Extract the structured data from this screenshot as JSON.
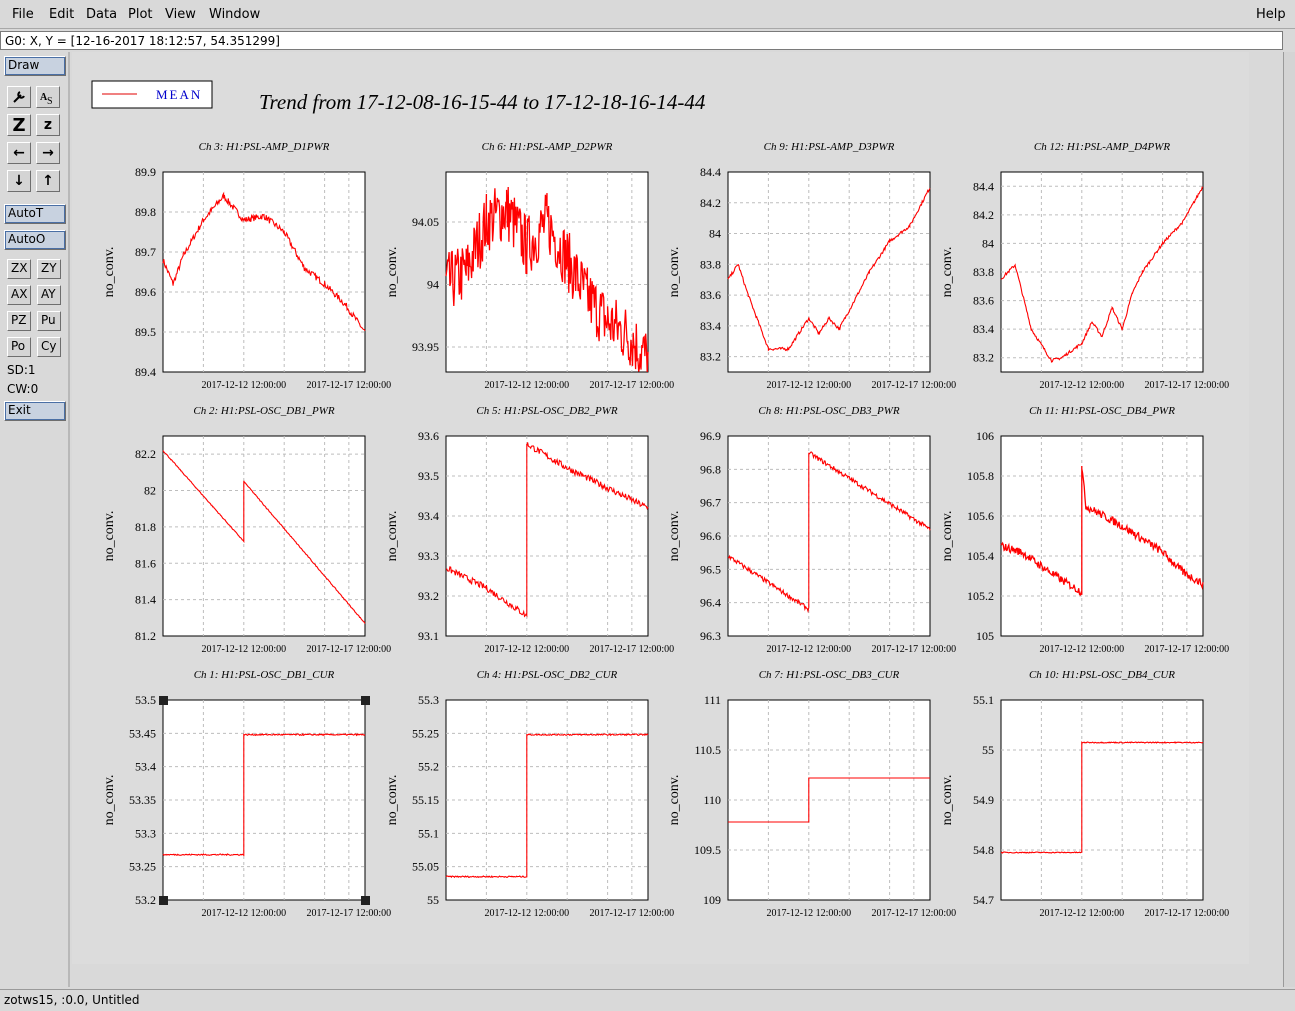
{
  "menu": {
    "items": [
      "File",
      "Edit",
      "Data",
      "Plot",
      "View",
      "Window"
    ],
    "help": "Help"
  },
  "coord_readout": "G0: X, Y = [12-16-2017 18:12:57, 54.351299]",
  "sidebar": {
    "draw": "Draw",
    "autot": "AutoT",
    "autoo": "AutoO",
    "zx": "ZX",
    "zy": "ZY",
    "ax": "AX",
    "ay": "AY",
    "pz": "PZ",
    "pu": "Pu",
    "po": "Po",
    "cy": "Cy",
    "sd": "SD:1",
    "cw": "CW:0",
    "exit": "Exit",
    "tools": [
      "wrench-icon",
      "text-label-icon",
      "zoom-z-icon",
      "zoom-z-small-icon",
      "arrow-left-icon",
      "arrow-right-icon",
      "arrow-down-icon",
      "arrow-up-icon"
    ]
  },
  "legend": {
    "label": "MEAN",
    "line_color": "#e00000",
    "text_color": "#0000cc"
  },
  "title": "Trend from 17-12-08-16-15-44 to 17-12-18-16-14-44",
  "status": "zotws15, :0.0, Untitled",
  "x_tick_labels": [
    "2017-12-12 12:00:00",
    "2017-12-17 12:00:00"
  ],
  "ylabel": "no_conv.",
  "colors": {
    "trace": "#ff0000",
    "grid": "#bdbdbd"
  },
  "chart_data": [
    {
      "type": "line",
      "title": "Ch 3: H1:PSL-AMP_D1PWR",
      "ylim": [
        89.4,
        89.9
      ],
      "yticks": [
        "89.9",
        "89.8",
        "89.7",
        "89.6",
        "89.5",
        "89.4"
      ],
      "x": [
        0,
        0.05,
        0.1,
        0.2,
        0.3,
        0.4,
        0.5,
        0.6,
        0.7,
        0.8,
        0.9,
        1.0
      ],
      "values": [
        89.68,
        89.62,
        89.69,
        89.78,
        89.84,
        89.78,
        89.79,
        89.75,
        89.66,
        89.62,
        89.57,
        89.5
      ],
      "noise": 0.008
    },
    {
      "type": "line",
      "title": "Ch 6: H1:PSL-AMP_D2PWR",
      "ylim": [
        93.93,
        94.09
      ],
      "yticks": [
        "94.05",
        "94",
        "93.95"
      ],
      "x": [
        0,
        0.1,
        0.2,
        0.3,
        0.4,
        0.5,
        0.6,
        0.7,
        0.8,
        0.9,
        1.0
      ],
      "values": [
        94.0,
        94.01,
        94.05,
        94.06,
        94.03,
        94.05,
        94.02,
        93.99,
        93.97,
        93.96,
        93.94
      ],
      "noise": 0.025
    },
    {
      "type": "line",
      "title": "Ch 9: H1:PSL-AMP_D3PWR",
      "ylim": [
        83.1,
        84.4
      ],
      "yticks": [
        "84.4",
        "84.2",
        "84",
        "83.8",
        "83.6",
        "83.4",
        "83.2"
      ],
      "x": [
        0,
        0.05,
        0.1,
        0.2,
        0.3,
        0.4,
        0.45,
        0.5,
        0.55,
        0.6,
        0.7,
        0.8,
        0.9,
        1.0
      ],
      "values": [
        83.7,
        83.8,
        83.6,
        83.25,
        83.25,
        83.45,
        83.35,
        83.45,
        83.38,
        83.5,
        83.75,
        83.95,
        84.05,
        84.3
      ],
      "noise": 0.01
    },
    {
      "type": "line",
      "title": "Ch 12: H1:PSL-AMP_D4PWR",
      "ylim": [
        83.1,
        84.5
      ],
      "yticks": [
        "84.4",
        "84.2",
        "84",
        "83.8",
        "83.6",
        "83.4",
        "83.2"
      ],
      "x": [
        0,
        0.07,
        0.15,
        0.25,
        0.3,
        0.4,
        0.45,
        0.5,
        0.55,
        0.6,
        0.65,
        0.7,
        0.8,
        0.9,
        1.0
      ],
      "values": [
        83.75,
        83.85,
        83.4,
        83.18,
        83.2,
        83.3,
        83.45,
        83.35,
        83.55,
        83.4,
        83.65,
        83.8,
        84.0,
        84.15,
        84.4
      ],
      "noise": 0.01
    },
    {
      "type": "line",
      "title": "Ch 2: H1:PSL-OSC_DB1_PWR",
      "ylim": [
        81.2,
        82.3
      ],
      "yticks": [
        "82.2",
        "82",
        "81.8",
        "81.6",
        "81.4",
        "81.2"
      ],
      "x": [
        0,
        0.4,
        0.4,
        1.0
      ],
      "values": [
        82.22,
        81.72,
        82.05,
        81.27
      ],
      "noise": 0.003
    },
    {
      "type": "line",
      "title": "Ch 5: H1:PSL-OSC_DB2_PWR",
      "ylim": [
        93.1,
        93.6
      ],
      "yticks": [
        "93.6",
        "93.5",
        "93.4",
        "93.3",
        "93.2",
        "93.1"
      ],
      "x": [
        0,
        0.2,
        0.4,
        0.4,
        0.6,
        0.8,
        1.0
      ],
      "values": [
        93.27,
        93.22,
        93.15,
        93.58,
        93.52,
        93.47,
        93.42
      ],
      "noise": 0.008
    },
    {
      "type": "line",
      "title": "Ch 8: H1:PSL-OSC_DB3_PWR",
      "ylim": [
        96.3,
        96.9
      ],
      "yticks": [
        "96.9",
        "96.8",
        "96.7",
        "96.6",
        "96.5",
        "96.4",
        "96.3"
      ],
      "x": [
        0,
        0.4,
        0.4,
        1.0
      ],
      "values": [
        96.54,
        96.38,
        96.85,
        96.62
      ],
      "noise": 0.007
    },
    {
      "type": "line",
      "title": "Ch 11: H1:PSL-OSC_DB4_PWR",
      "ylim": [
        105.0,
        106.0
      ],
      "yticks": [
        "106",
        "105.8",
        "105.6",
        "105.4",
        "105.2",
        "105"
      ],
      "x": [
        0,
        0.1,
        0.2,
        0.3,
        0.4,
        0.4,
        0.42,
        0.6,
        0.8,
        0.9,
        1.0
      ],
      "values": [
        105.45,
        105.42,
        105.35,
        105.28,
        105.22,
        105.85,
        105.65,
        105.55,
        105.42,
        105.32,
        105.26
      ],
      "noise": 0.02
    },
    {
      "type": "line",
      "title": "Ch 1: H1:PSL-OSC_DB1_CUR",
      "ylim": [
        53.2,
        53.5
      ],
      "yticks": [
        "53.5",
        "53.45",
        "53.4",
        "53.35",
        "53.3",
        "53.25",
        "53.2"
      ],
      "x": [
        0,
        0.4,
        0.4,
        1.0
      ],
      "values": [
        53.268,
        53.268,
        53.448,
        53.448
      ],
      "noise": 0.001
    },
    {
      "type": "line",
      "title": "Ch 4: H1:PSL-OSC_DB2_CUR",
      "ylim": [
        55.0,
        55.3
      ],
      "yticks": [
        "55.3",
        "55.25",
        "55.2",
        "55.15",
        "55.1",
        "55.05",
        "55"
      ],
      "x": [
        0,
        0.4,
        0.4,
        1.0
      ],
      "values": [
        55.035,
        55.035,
        55.248,
        55.248
      ],
      "noise": 0.001
    },
    {
      "type": "line",
      "title": "Ch 7: H1:PSL-OSC_DB3_CUR",
      "ylim": [
        109.0,
        111.0
      ],
      "yticks": [
        "111",
        "110.5",
        "110",
        "109.5",
        "109"
      ],
      "x": [
        0,
        0.4,
        0.4,
        1.0
      ],
      "values": [
        109.78,
        109.78,
        110.22,
        110.22
      ],
      "noise": 0
    },
    {
      "type": "line",
      "title": "Ch 10: H1:PSL-OSC_DB4_CUR",
      "ylim": [
        54.7,
        55.1
      ],
      "yticks": [
        "55.1",
        "55",
        "54.9",
        "54.8",
        "54.7"
      ],
      "x": [
        0,
        0.4,
        0.4,
        1.0
      ],
      "values": [
        54.795,
        54.795,
        55.015,
        55.015
      ],
      "noise": 0.001
    }
  ]
}
